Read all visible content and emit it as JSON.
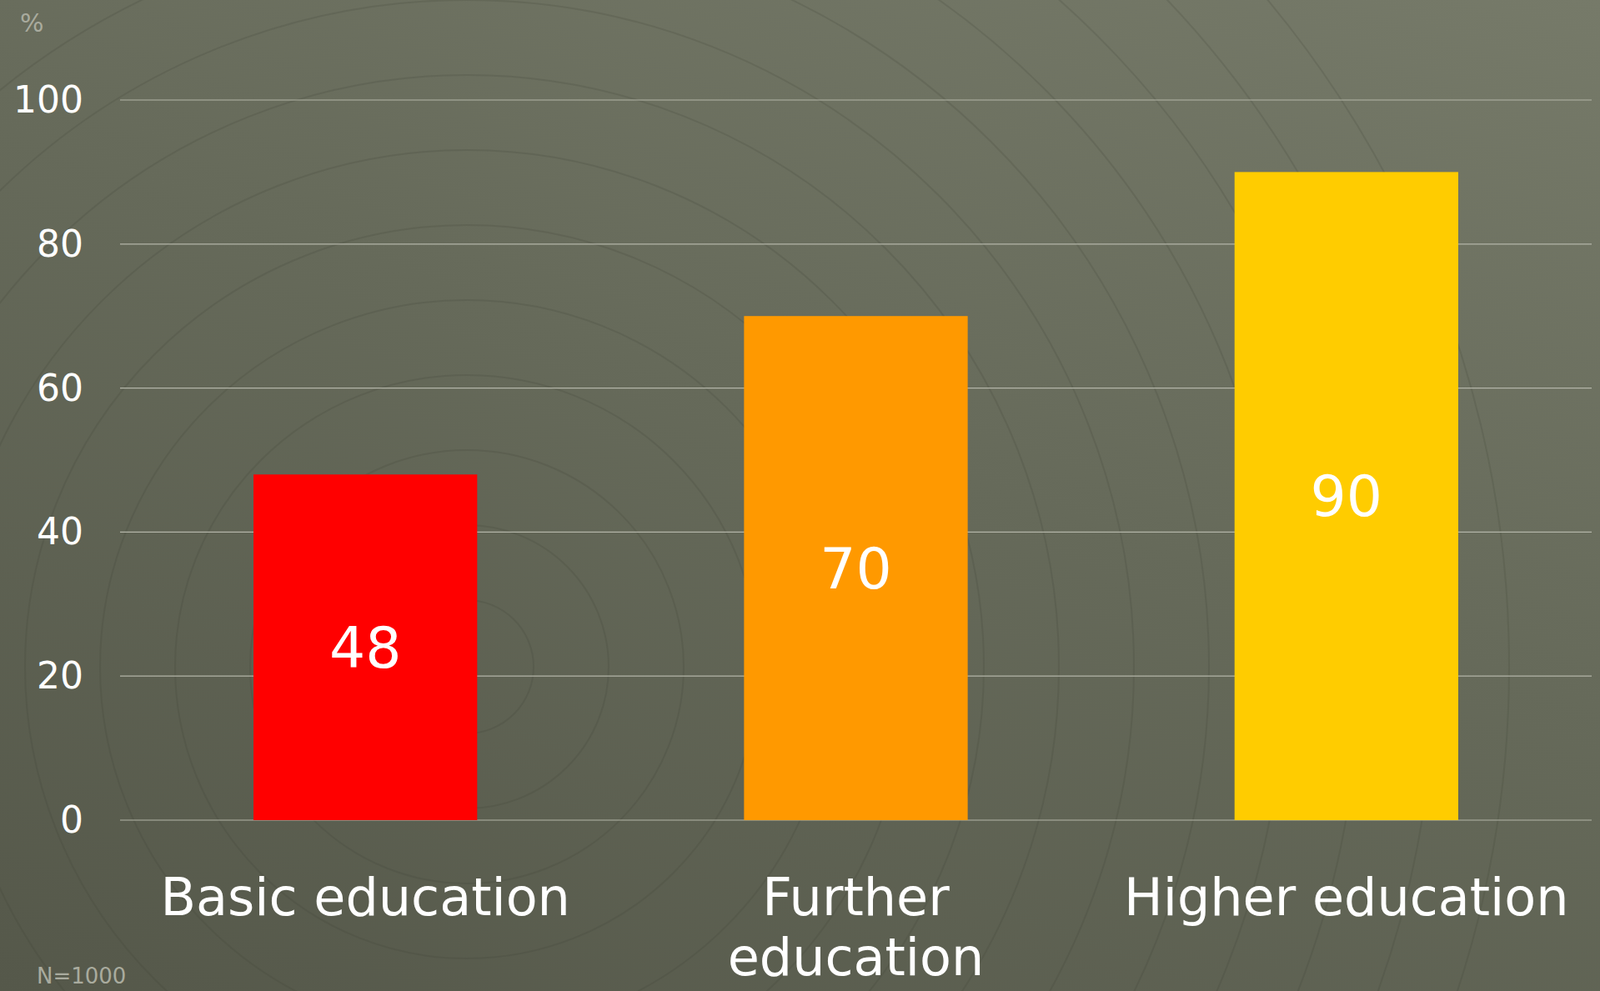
{
  "chart_data": {
    "type": "bar",
    "y_label": "%",
    "note": "N=1000",
    "categories": [
      "Basic education",
      "Further education",
      "Higher education"
    ],
    "values": [
      48,
      70,
      90
    ],
    "colors": [
      "#ff0000",
      "#ff9900",
      "#ffcc00"
    ],
    "ylim": [
      0,
      100
    ],
    "yticks": [
      0,
      20,
      40,
      60,
      80,
      100
    ],
    "grid": true,
    "data_labels": true
  }
}
